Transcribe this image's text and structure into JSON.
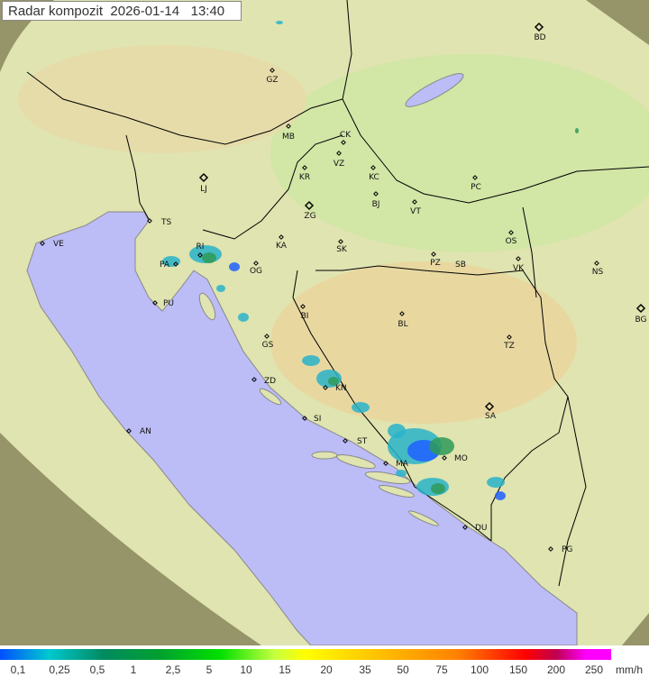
{
  "title": "Radar kompozit  2026-01-14   13:40",
  "colors": {
    "land": "#dfe4b0",
    "sea": "#bcbcf6",
    "outside_range": "#7d7a52",
    "border": "#000000",
    "echo_light": "#29b3c9",
    "echo_blue": "#2060ff",
    "echo_green": "#2f9a58"
  },
  "cities": [
    "GZ",
    "BD",
    "MB",
    "CK",
    "VZ",
    "KR",
    "KC",
    "PC",
    "LJ",
    "ZG",
    "BJ",
    "VT",
    "TS",
    "VE",
    "RI",
    "KA",
    "SK",
    "OS",
    "PZ",
    "SB",
    "VK",
    "NS",
    "PA",
    "OG",
    "PU",
    "BI",
    "BL",
    "BG",
    "GS",
    "TZ",
    "ZD",
    "KN",
    "SI",
    "SA",
    "AN",
    "ST",
    "MA",
    "MO",
    "DU",
    "PG"
  ],
  "capitals": [
    "BD",
    "LJ",
    "ZG",
    "SA",
    "BG"
  ],
  "legend": {
    "labels": [
      "0,1",
      "0,25",
      "0,5",
      "1",
      "2,5",
      "5",
      "10",
      "15",
      "20",
      "35",
      "50",
      "75",
      "100",
      "150",
      "200",
      "250"
    ],
    "unit": "mm/h"
  }
}
